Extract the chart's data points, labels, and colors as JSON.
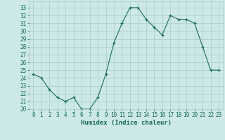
{
  "x": [
    0,
    1,
    2,
    3,
    4,
    5,
    6,
    7,
    8,
    9,
    10,
    11,
    12,
    13,
    14,
    15,
    16,
    17,
    18,
    19,
    20,
    21,
    22,
    23
  ],
  "y": [
    24.5,
    24.0,
    22.5,
    21.5,
    21.0,
    21.5,
    20.0,
    20.0,
    21.5,
    24.5,
    28.5,
    31.0,
    33.0,
    33.0,
    31.5,
    30.5,
    29.5,
    32.0,
    31.5,
    31.5,
    31.0,
    28.0,
    25.0,
    25.0
  ],
  "xlabel": "Humidex (Indice chaleur)",
  "ylim": [
    20,
    33.8
  ],
  "xlim": [
    -0.5,
    23.5
  ],
  "yticks": [
    20,
    21,
    22,
    23,
    24,
    25,
    26,
    27,
    28,
    29,
    30,
    31,
    32,
    33
  ],
  "xticks": [
    0,
    1,
    2,
    3,
    4,
    5,
    6,
    7,
    8,
    9,
    10,
    11,
    12,
    13,
    14,
    15,
    16,
    17,
    18,
    19,
    20,
    21,
    22,
    23
  ],
  "line_color": "#1a6b5a",
  "marker_color": "#1a6b5a",
  "bg_color": "#cce8e8",
  "grid_color": "#aacccc",
  "font_color": "#1a6b5a",
  "tick_fontsize": 5.5,
  "xlabel_fontsize": 6.5
}
